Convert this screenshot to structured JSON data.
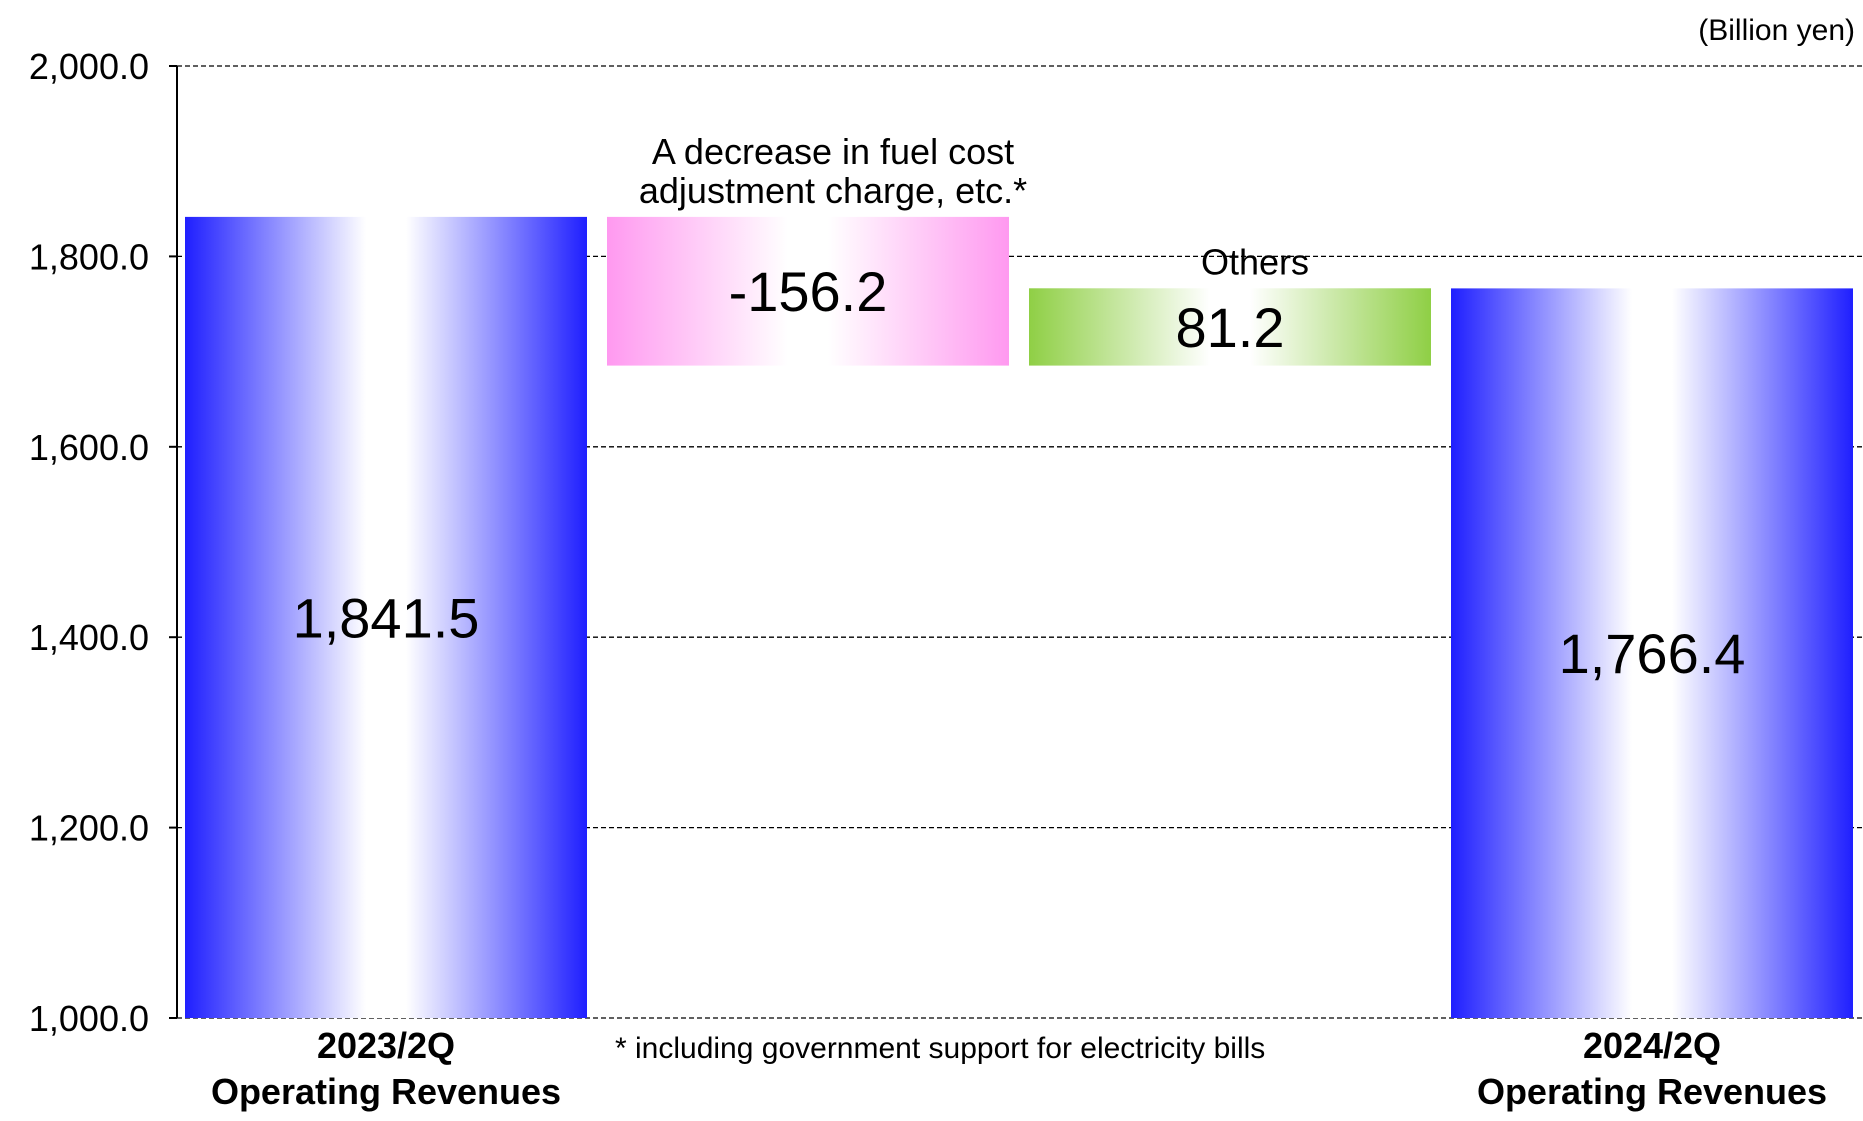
{
  "chart_data": {
    "type": "waterfall",
    "unit_label": "(Billion yen)",
    "ylim": [
      1000,
      2000
    ],
    "yticks": [
      "1,000.0",
      "1,200.0",
      "1,400.0",
      "1,600.0",
      "1,800.0",
      "2,000.0"
    ],
    "ytick_values": [
      1000,
      1200,
      1400,
      1600,
      1800,
      2000
    ],
    "grid": true,
    "bars": [
      {
        "kind": "total",
        "value": 1841.5,
        "label": "1,841.5",
        "category_line1": "2023/2Q",
        "category_line2": "Operating Revenues",
        "color": "#1f1fff"
      },
      {
        "kind": "delta",
        "value": -156.2,
        "label": "-156.2",
        "annotation_line1": "A decrease in fuel cost",
        "annotation_line2": "adjustment charge, etc.*",
        "color": "#ff99f0"
      },
      {
        "kind": "delta",
        "value": 81.2,
        "label": "81.2",
        "annotation_line1": "Others",
        "color": "#8fcf45"
      },
      {
        "kind": "total",
        "value": 1766.4,
        "label": "1,766.4",
        "category_line1": "2024/2Q",
        "category_line2": "Operating Revenues",
        "color": "#1f1fff"
      }
    ],
    "footnote": "* including government support for electricity bills"
  }
}
